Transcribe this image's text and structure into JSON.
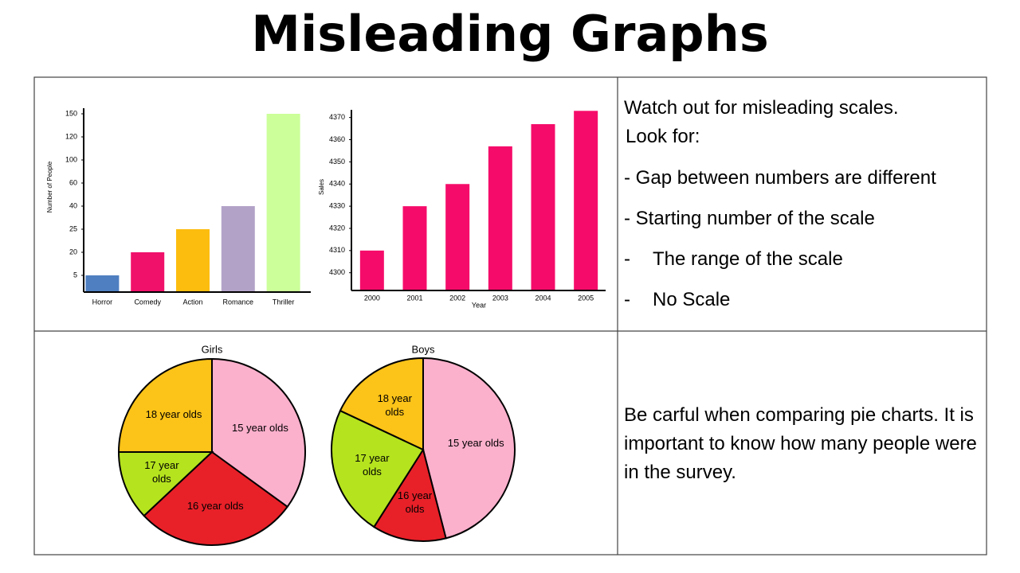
{
  "title": "Misleading Graphs",
  "chart_data": [
    {
      "type": "bar",
      "categories": [
        "Horror",
        "Comedy",
        "Action",
        "Romance",
        "Thriller"
      ],
      "values": [
        5,
        20,
        25,
        40,
        150
      ],
      "colors": [
        "#4f7fc0",
        "#f0116a",
        "#fdbd0f",
        "#b3a2c8",
        "#ccff99"
      ],
      "ylabel": "Number of People",
      "ylim": [
        0,
        150
      ],
      "yticks": [
        5,
        20,
        25,
        40,
        60,
        100,
        120,
        150
      ],
      "evenly_spaced_ticks": true
    },
    {
      "type": "bar",
      "categories": [
        "2000",
        "2001",
        "2002",
        "2003",
        "2004",
        "2005"
      ],
      "values": [
        4310,
        4330,
        4340,
        4357,
        4367,
        4373
      ],
      "color": "#f50c6a",
      "xlabel": "Year",
      "ylabel": "Sales",
      "ylim": [
        4292,
        4374
      ],
      "yticks": [
        4300,
        4310,
        4320,
        4330,
        4340,
        4350,
        4360,
        4370
      ]
    },
    {
      "type": "pie",
      "title": "Girls",
      "categories": [
        "15 year olds",
        "16 year olds",
        "17 year olds",
        "18 year olds"
      ],
      "values": [
        35,
        28,
        12,
        25
      ],
      "colors": [
        "#fbb0cc",
        "#e82028",
        "#b5e31e",
        "#fcc318"
      ]
    },
    {
      "type": "pie",
      "title": "Boys",
      "categories": [
        "15 year olds",
        "16 year olds",
        "17 year olds",
        "18 year olds"
      ],
      "values": [
        46,
        13,
        23,
        18
      ],
      "colors": [
        "#fbb0cc",
        "#e82028",
        "#b5e31e",
        "#fcc318"
      ]
    }
  ],
  "notes": {
    "scales_intro": "Watch out for misleading scales.",
    "look_for": "Look for:",
    "items": [
      "Gap between numbers are different",
      "Starting number of the scale",
      "The range of the scale",
      "No Scale"
    ],
    "pie_note": "Be carful when comparing pie charts. It is important to know how many people were in the survey."
  }
}
